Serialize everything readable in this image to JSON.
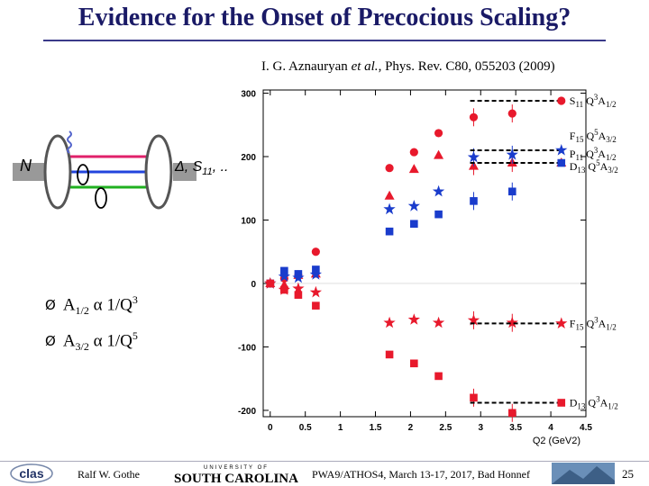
{
  "slide": {
    "title": "Evidence for the Onset of Precocious Scaling?",
    "citation_author": "I. G. Aznauryan ",
    "citation_etal": "et al.",
    "citation_rest": ", Phys. Rev. C80, 055203 (2009)",
    "bullet1": {
      "arrow": "Ø",
      "a": "A",
      "sub": "1/2",
      "op": " α 1/Q",
      "sup": "3"
    },
    "bullet2": {
      "arrow": "Ø",
      "a": "A",
      "sub": "3/2",
      "op": " α 1/Q",
      "sup": "5"
    },
    "diagram": {
      "left_label": "N",
      "right_label": "Δ, S",
      "right_sub": "11",
      "right_dots": ", ..."
    },
    "footer": {
      "author": "Ralf  W. Gothe",
      "conference": "PWA9/ATHOS4, March 13-17, 2017, Bad Honnef",
      "page": "25",
      "logo_left": "clas",
      "logo_usc_top": "UNIVERSITY OF",
      "logo_usc": "SOUTH CAROLINA"
    },
    "colors": {
      "title": "#1a1a66",
      "red": "#e8192c",
      "blue": "#1a3ccc"
    }
  },
  "chart_data": {
    "type": "scatter",
    "xlabel": "Q2 (GeV2)",
    "ylabel": "",
    "xlim": [
      -0.1,
      4.5
    ],
    "ylim": [
      -210,
      305
    ],
    "xticks": [
      "0",
      "0.5",
      "1",
      "1.5",
      "2",
      "2.5",
      "3",
      "3.5",
      "4",
      "4.5"
    ],
    "yticks": [
      "300",
      "200",
      "100",
      "0",
      "-100",
      "-200"
    ],
    "series": [
      {
        "name": "S11 Q3A1/2",
        "color": "red",
        "marker": "circle",
        "points": [
          [
            0,
            0
          ],
          [
            0.2,
            8
          ],
          [
            0.4,
            13
          ],
          [
            0.65,
            50
          ],
          [
            1.7,
            182
          ],
          [
            2.05,
            207
          ],
          [
            2.4,
            237
          ],
          [
            2.9,
            262
          ],
          [
            3.45,
            268
          ]
        ]
      },
      {
        "name": "P11 Q3A1/2",
        "color": "red",
        "marker": "triangle",
        "points": [
          [
            0,
            0
          ],
          [
            0.2,
            -3
          ],
          [
            0.4,
            13
          ],
          [
            0.65,
            15
          ],
          [
            1.7,
            138
          ],
          [
            2.05,
            180
          ],
          [
            2.4,
            202
          ],
          [
            2.9,
            185
          ],
          [
            3.45,
            190
          ]
        ]
      },
      {
        "name": "F15 Q5A3/2",
        "color": "blue",
        "marker": "star",
        "points": [
          [
            0,
            0
          ],
          [
            0.2,
            11
          ],
          [
            0.4,
            9
          ],
          [
            0.65,
            14
          ],
          [
            1.7,
            117
          ],
          [
            2.05,
            122
          ],
          [
            2.4,
            145
          ],
          [
            2.9,
            199
          ],
          [
            3.45,
            203
          ]
        ]
      },
      {
        "name": "D13 Q5A3/2",
        "color": "blue",
        "marker": "square",
        "points": [
          [
            0,
            0
          ],
          [
            0.2,
            20
          ],
          [
            0.4,
            15
          ],
          [
            0.65,
            22
          ],
          [
            1.7,
            82
          ],
          [
            2.05,
            94
          ],
          [
            2.4,
            109
          ],
          [
            2.9,
            130
          ],
          [
            3.45,
            145
          ]
        ]
      },
      {
        "name": "F15 Q3A1/2",
        "color": "red",
        "marker": "star",
        "points": [
          [
            0,
            0
          ],
          [
            0.2,
            -10
          ],
          [
            0.4,
            -8
          ],
          [
            0.65,
            -14
          ],
          [
            1.7,
            -62
          ],
          [
            2.05,
            -57
          ],
          [
            2.4,
            -62
          ],
          [
            2.9,
            -58
          ],
          [
            3.45,
            -62
          ]
        ]
      },
      {
        "name": "D13 Q3A1/2",
        "color": "red",
        "marker": "square",
        "points": [
          [
            0,
            0
          ],
          [
            0.2,
            -10
          ],
          [
            0.4,
            -18
          ],
          [
            0.65,
            -35
          ],
          [
            1.7,
            -112
          ],
          [
            2.05,
            -126
          ],
          [
            2.4,
            -146
          ],
          [
            2.9,
            -180
          ],
          [
            3.45,
            -204
          ]
        ]
      }
    ],
    "asymptotes": [
      {
        "y": 288,
        "label_main": "S",
        "label_sub1": "11",
        "label_mid": " Q",
        "label_sup": "3",
        "label_a": "A",
        "label_sub2": "1/2",
        "color": "red",
        "marker": "circle"
      },
      {
        "y": 210,
        "label_main": "F",
        "label_sub1": "15",
        "label_mid": " Q",
        "label_sup": "5",
        "label_a": "A",
        "label_sub2": "3/2",
        "color": "blue",
        "marker": "star"
      },
      {
        "y": 190,
        "label_main": "P",
        "label_sub1": "11",
        "label_mid": " Q",
        "label_sup": "3",
        "label_a": "A",
        "label_sub2": "1/2",
        "color": "red",
        "marker": "triangle"
      },
      {
        "y": 190,
        "label_main": "D",
        "label_sub1": "13",
        "label_mid": " Q",
        "label_sup": "5",
        "label_a": "A",
        "label_sub2": "3/2",
        "color": "blue",
        "marker": "square"
      },
      {
        "y": -63,
        "label_main": "F",
        "label_sub1": "15",
        "label_mid": " Q",
        "label_sup": "3",
        "label_a": "A",
        "label_sub2": "1/2",
        "color": "red",
        "marker": "star"
      },
      {
        "y": -188,
        "label_main": "D",
        "label_sub1": "13",
        "label_mid": " Q",
        "label_sup": "3",
        "label_a": "A",
        "label_sub2": "1/2",
        "color": "red",
        "marker": "square"
      }
    ]
  }
}
